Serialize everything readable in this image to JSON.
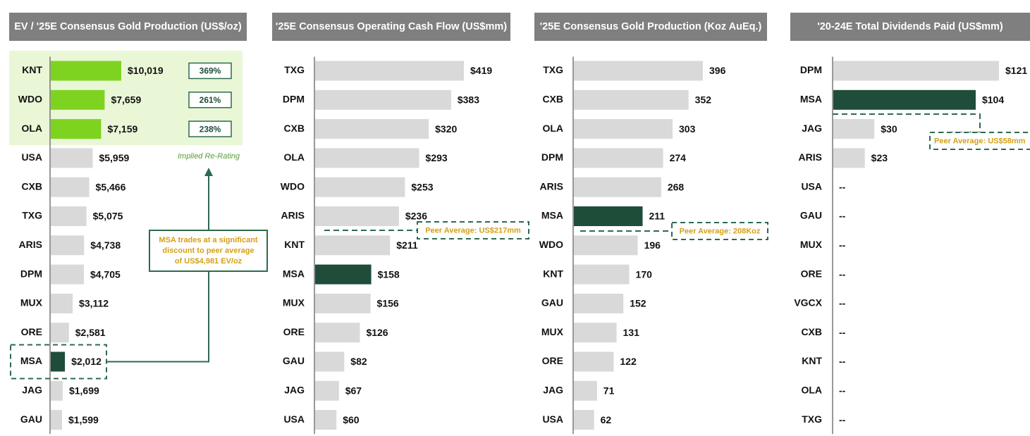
{
  "colors": {
    "bar": "#d9d9d9",
    "highlight": "#1e4d3a",
    "top": "#7ed321",
    "band": "#eaf7d7",
    "header": "#7f7f7f",
    "accent": "#d4a017",
    "dash": "#2d6a4f"
  },
  "annotations": {
    "implied_rerating": "Implied Re-Rating",
    "callout_lines": [
      "MSA trades at a significant",
      "discount to peer average",
      "of US$4,981 EV/oz"
    ]
  },
  "chart_data": [
    {
      "type": "bar",
      "orientation": "horizontal",
      "title": "EV / '25E Consensus Gold Production (US$/oz)",
      "categories": [
        "KNT",
        "WDO",
        "OLA",
        "USA",
        "CXB",
        "TXG",
        "ARIS",
        "DPM",
        "MUX",
        "ORE",
        "MSA",
        "JAG",
        "GAU"
      ],
      "values": [
        10019,
        7659,
        7159,
        5959,
        5466,
        5075,
        4738,
        4705,
        3112,
        2581,
        2012,
        1699,
        1599
      ],
      "labels": [
        "$10,019",
        "$7,659",
        "$7,159",
        "$5,959",
        "$5,466",
        "$5,075",
        "$4,738",
        "$4,705",
        "$3,112",
        "$2,581",
        "$2,012",
        "$1,699",
        "$1,599"
      ],
      "highlight": "MSA",
      "top_group": [
        "KNT",
        "WDO",
        "OLA"
      ],
      "rerating": [
        "369%",
        "261%",
        "238%"
      ]
    },
    {
      "type": "bar",
      "orientation": "horizontal",
      "title": "'25E Consensus Operating Cash Flow (US$mm)",
      "categories": [
        "TXG",
        "DPM",
        "CXB",
        "OLA",
        "WDO",
        "ARIS",
        "KNT",
        "MSA",
        "MUX",
        "ORE",
        "GAU",
        "JAG",
        "USA"
      ],
      "values": [
        419,
        383,
        320,
        293,
        253,
        236,
        211,
        158,
        156,
        126,
        82,
        67,
        60
      ],
      "labels": [
        "$419",
        "$383",
        "$320",
        "$293",
        "$253",
        "$236",
        "$211",
        "$158",
        "$156",
        "$126",
        "$82",
        "$67",
        "$60"
      ],
      "highlight": "MSA",
      "peer_average": {
        "value": 217,
        "label": "Peer Average: US$217mm"
      }
    },
    {
      "type": "bar",
      "orientation": "horizontal",
      "title": "'25E Consensus Gold Production (Koz AuEq.)",
      "categories": [
        "TXG",
        "CXB",
        "OLA",
        "DPM",
        "ARIS",
        "MSA",
        "WDO",
        "KNT",
        "GAU",
        "MUX",
        "ORE",
        "JAG",
        "USA"
      ],
      "values": [
        396,
        352,
        303,
        274,
        268,
        211,
        196,
        170,
        152,
        131,
        122,
        71,
        62
      ],
      "labels": [
        "396",
        "352",
        "303",
        "274",
        "268",
        "211",
        "196",
        "170",
        "152",
        "131",
        "122",
        "71",
        "62"
      ],
      "highlight": "MSA",
      "peer_average": {
        "value": 208,
        "label": "Peer Average: 208Koz"
      }
    },
    {
      "type": "bar",
      "orientation": "horizontal",
      "title": "'20-24E Total Dividends Paid (US$mm)",
      "categories": [
        "DPM",
        "MSA",
        "JAG",
        "ARIS",
        "USA",
        "GAU",
        "MUX",
        "ORE",
        "VGCX",
        "CXB",
        "KNT",
        "OLA",
        "TXG"
      ],
      "values": [
        121,
        104,
        30,
        23,
        null,
        null,
        null,
        null,
        null,
        null,
        null,
        null,
        null
      ],
      "labels": [
        "$121",
        "$104",
        "$30",
        "$23",
        "--",
        "--",
        "--",
        "--",
        "--",
        "--",
        "--",
        "--",
        "--"
      ],
      "highlight": "MSA",
      "peer_average": {
        "value": 58,
        "label": "Peer Average: US$58mm"
      }
    }
  ]
}
